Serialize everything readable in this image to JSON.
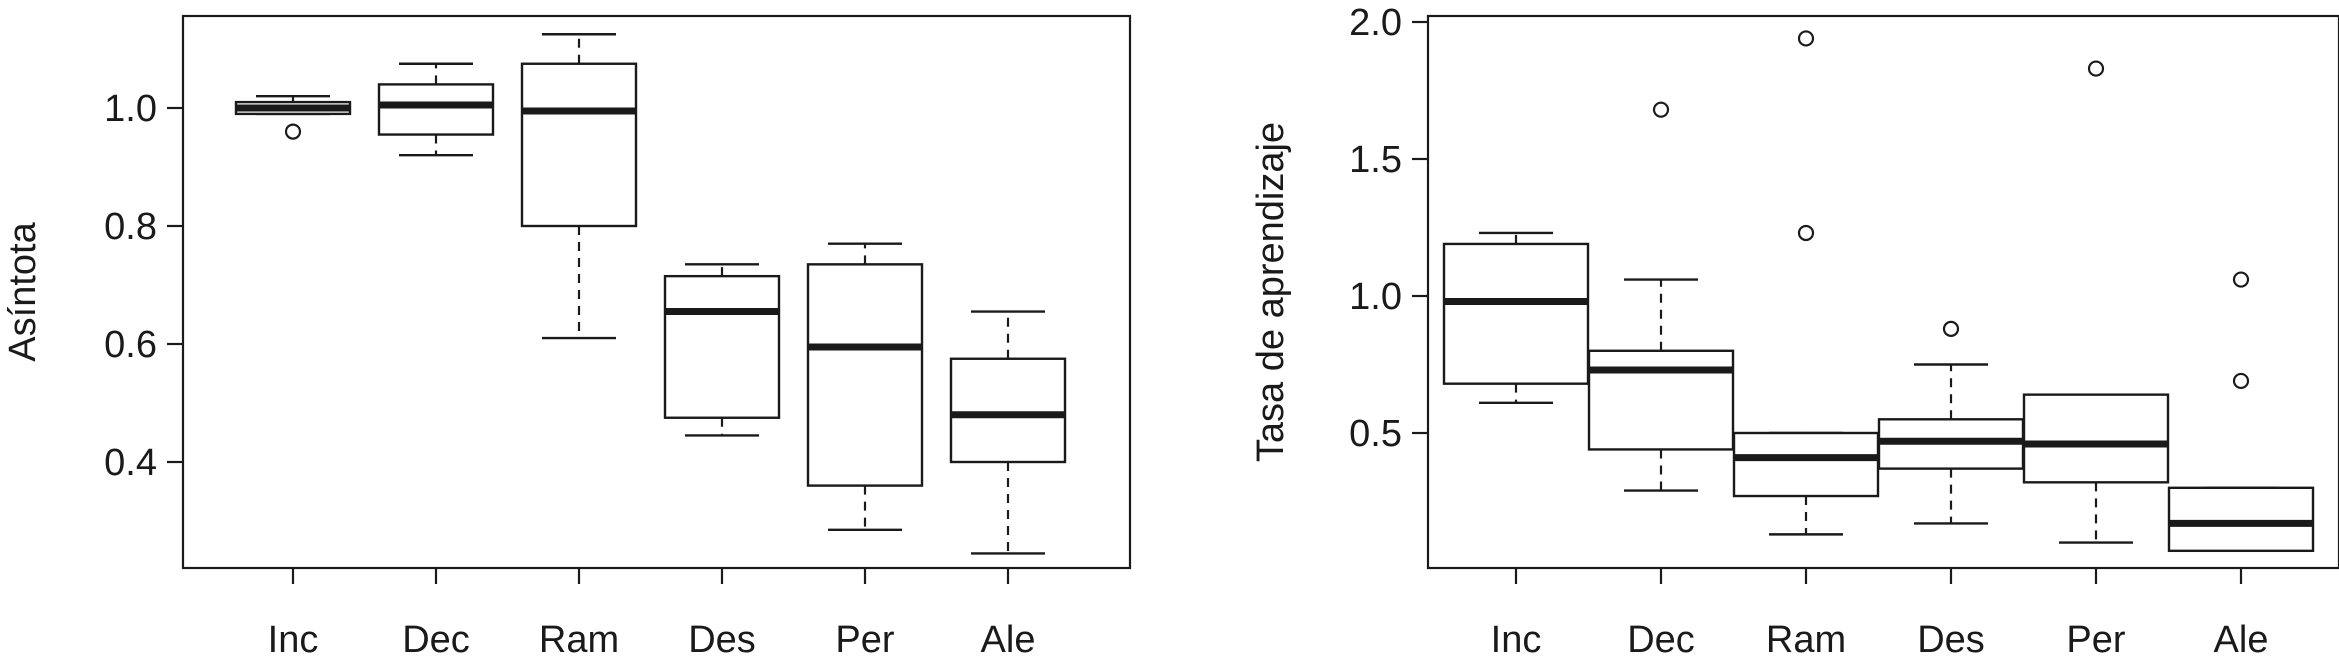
{
  "chart_data": [
    {
      "type": "boxplot",
      "ylabel": "Asíntota",
      "categories": [
        "Inc",
        "Dec",
        "Ram",
        "Des",
        "Per",
        "Ale"
      ],
      "yticks": [
        "0.4",
        "0.6",
        "0.8",
        "1.0"
      ],
      "ylim": [
        0.23,
        1.15
      ],
      "boxes": [
        {
          "category": "Inc",
          "whisker_low": 0.99,
          "q1": 0.99,
          "median": 1.0,
          "q3": 1.01,
          "whisker_high": 1.02,
          "outliers": [
            0.96
          ]
        },
        {
          "category": "Dec",
          "whisker_low": 0.92,
          "q1": 0.955,
          "median": 1.005,
          "q3": 1.04,
          "whisker_high": 1.075,
          "outliers": []
        },
        {
          "category": "Ram",
          "whisker_low": 0.61,
          "q1": 0.8,
          "median": 0.995,
          "q3": 1.075,
          "whisker_high": 1.125,
          "outliers": []
        },
        {
          "category": "Des",
          "whisker_low": 0.445,
          "q1": 0.475,
          "median": 0.655,
          "q3": 0.715,
          "whisker_high": 0.735,
          "outliers": []
        },
        {
          "category": "Per",
          "whisker_low": 0.285,
          "q1": 0.36,
          "median": 0.595,
          "q3": 0.735,
          "whisker_high": 0.77,
          "outliers": []
        },
        {
          "category": "Ale",
          "whisker_low": 0.245,
          "q1": 0.4,
          "median": 0.48,
          "q3": 0.575,
          "whisker_high": 0.655,
          "outliers": []
        }
      ]
    },
    {
      "type": "boxplot",
      "ylabel": "Tasa de aprendizaje",
      "categories": [
        "Inc",
        "Dec",
        "Ram",
        "Des",
        "Per",
        "Ale"
      ],
      "yticks": [
        "0.5",
        "1.0",
        "1.5",
        "2.0"
      ],
      "ylim": [
        0.04,
        2.02
      ],
      "boxes": [
        {
          "category": "Inc",
          "whisker_low": 0.61,
          "q1": 0.68,
          "median": 0.98,
          "q3": 1.19,
          "whisker_high": 1.23,
          "outliers": []
        },
        {
          "category": "Dec",
          "whisker_low": 0.29,
          "q1": 0.44,
          "median": 0.73,
          "q3": 0.8,
          "whisker_high": 1.06,
          "outliers": [
            1.68
          ]
        },
        {
          "category": "Ram",
          "whisker_low": 0.13,
          "q1": 0.27,
          "median": 0.41,
          "q3": 0.5,
          "whisker_high": 0.5,
          "outliers": [
            1.23,
            1.94
          ]
        },
        {
          "category": "Des",
          "whisker_low": 0.17,
          "q1": 0.37,
          "median": 0.47,
          "q3": 0.55,
          "whisker_high": 0.75,
          "outliers": [
            0.88
          ]
        },
        {
          "category": "Per",
          "whisker_low": 0.1,
          "q1": 0.32,
          "median": 0.46,
          "q3": 0.64,
          "whisker_high": 0.64,
          "outliers": [
            1.83
          ]
        },
        {
          "category": "Ale",
          "whisker_low": 0.07,
          "q1": 0.07,
          "median": 0.17,
          "q3": 0.3,
          "whisker_high": 0.3,
          "outliers": [
            0.69,
            1.06
          ]
        }
      ]
    }
  ]
}
